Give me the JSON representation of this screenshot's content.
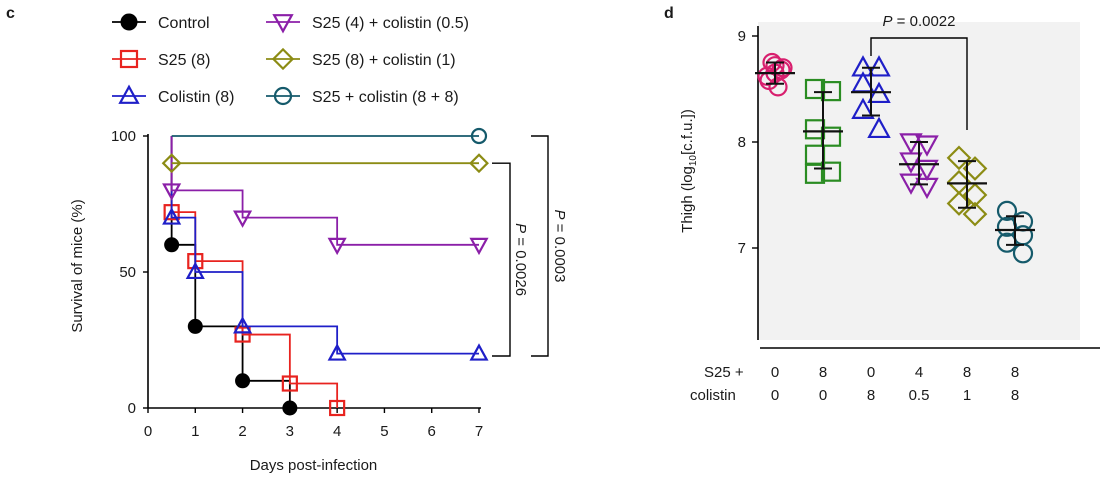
{
  "panels": {
    "c": {
      "label": "c"
    },
    "d": {
      "label": "d"
    }
  },
  "chart_data": [
    {
      "panel": "c",
      "type": "line",
      "step": true,
      "xlabel": "Days post-infection",
      "ylabel": "Survival of mice (%)",
      "xlim": [
        0,
        7
      ],
      "ylim": [
        0,
        100
      ],
      "xticks": [
        0,
        1,
        2,
        3,
        4,
        5,
        6,
        7
      ],
      "yticks": [
        0,
        50,
        100
      ],
      "legend_position": "top",
      "series": [
        {
          "name": "Control",
          "color": "#000000",
          "marker": "filled-circle",
          "x": [
            0.5,
            1,
            2,
            3
          ],
          "y": [
            60,
            30,
            10,
            0
          ]
        },
        {
          "name": "S25 (8)",
          "color": "#e8231f",
          "marker": "square",
          "x": [
            0.5,
            1,
            2,
            3,
            4
          ],
          "y": [
            72,
            54,
            27,
            9,
            0
          ]
        },
        {
          "name": "Colistin (8)",
          "color": "#1f1fc8",
          "marker": "triangle-up",
          "x": [
            0.5,
            1,
            2,
            4,
            7
          ],
          "y": [
            70,
            50,
            30,
            20,
            20
          ]
        },
        {
          "name": "S25 (4) + colistin (0.5)",
          "color": "#8b1fa8",
          "marker": "triangle-down",
          "x": [
            0.5,
            2,
            4,
            7
          ],
          "y": [
            80,
            70,
            60,
            60
          ]
        },
        {
          "name": "S25 (8) + colistin (1)",
          "color": "#8c8c14",
          "marker": "diamond",
          "x": [
            0.5,
            7
          ],
          "y": [
            90,
            90
          ]
        },
        {
          "name": "S25 + colistin (8 + 8)",
          "color": "#155a6b",
          "marker": "circle",
          "x": [
            7
          ],
          "y": [
            100
          ]
        }
      ],
      "annotations": [
        {
          "text": "P = 0.0003",
          "italic_prefix": "P",
          "rest": " = 0.0003",
          "from_y": 100,
          "to_y": 20,
          "orientation": "rotated-cw"
        },
        {
          "text": "P = 0.0026",
          "italic_prefix": "P",
          "rest": " = 0.0026",
          "from_y": 90,
          "to_y": 20,
          "orientation": "rotated-cw"
        }
      ]
    },
    {
      "panel": "d",
      "type": "scatter",
      "ylabel_parts": [
        "Thigh (log",
        "10",
        "[c.f.u.])"
      ],
      "ylim": [
        6,
        9
      ],
      "yticks": [
        7,
        8,
        9
      ],
      "row_labels": [
        "S25 +",
        "colistin"
      ],
      "groups": [
        {
          "s25": "0",
          "colistin": "0",
          "color": "#d81f6e",
          "marker": "circle",
          "mean": 8.65,
          "sd_low": 8.55,
          "sd_high": 8.75,
          "values": [
            8.62,
            8.7,
            8.65,
            8.72,
            8.58,
            8.68,
            8.75,
            8.52
          ]
        },
        {
          "s25": "8",
          "colistin": "0",
          "color": "#2a8c22",
          "marker": "square",
          "mean": 8.1,
          "sd_low": 7.75,
          "sd_high": 8.47,
          "values": [
            8.5,
            8.48,
            8.12,
            8.05,
            7.88,
            7.72,
            7.7
          ]
        },
        {
          "s25": "0",
          "colistin": "8",
          "color": "#1f1fc8",
          "marker": "triangle-up",
          "mean": 8.47,
          "sd_low": 8.25,
          "sd_high": 8.7,
          "values": [
            8.7,
            8.7,
            8.55,
            8.45,
            8.3,
            8.12
          ]
        },
        {
          "s25": "4",
          "colistin": "0.5",
          "color": "#8b1fa8",
          "marker": "triangle-down",
          "mean": 7.79,
          "sd_low": 7.6,
          "sd_high": 8.0,
          "values": [
            8.0,
            7.98,
            7.82,
            7.75,
            7.62,
            7.58
          ]
        },
        {
          "s25": "8",
          "colistin": "1",
          "color": "#8c8c14",
          "marker": "diamond",
          "mean": 7.61,
          "sd_low": 7.38,
          "sd_high": 7.82,
          "values": [
            7.85,
            7.75,
            7.62,
            7.5,
            7.42,
            7.32
          ]
        },
        {
          "s25": "8",
          "colistin": "8",
          "color": "#155a6b",
          "marker": "circle",
          "mean": 7.17,
          "sd_low": 7.03,
          "sd_high": 7.3,
          "values": [
            7.35,
            7.25,
            7.2,
            7.12,
            7.05,
            6.95
          ]
        }
      ],
      "annotations": [
        {
          "text": "P = 0.0022",
          "italic_prefix": "P",
          "rest": " = 0.0022",
          "between_groups": [
            2,
            4
          ]
        }
      ]
    }
  ]
}
